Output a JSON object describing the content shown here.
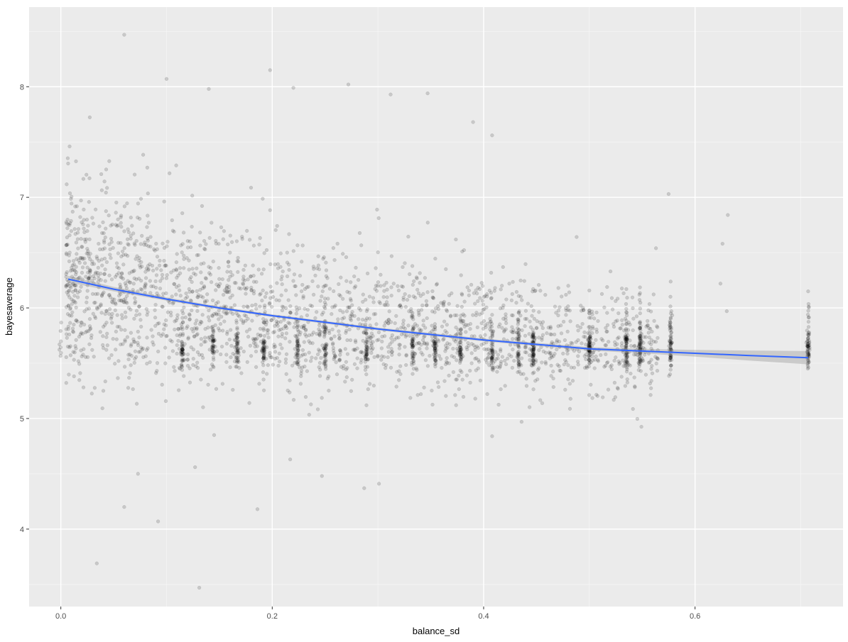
{
  "chart_data": {
    "type": "scatter",
    "title": "",
    "xlabel": "balance_sd",
    "ylabel": "bayesaverage",
    "xlim": [
      -0.03,
      0.74
    ],
    "ylim": [
      3.3,
      8.72
    ],
    "x_ticks": [
      0.0,
      0.2,
      0.4,
      0.6
    ],
    "x_tick_labels": [
      "0.0",
      "0.2",
      "0.4",
      "0.6"
    ],
    "y_ticks": [
      4,
      5,
      6,
      7,
      8
    ],
    "y_tick_labels": [
      "4",
      "5",
      "6",
      "7",
      "8"
    ],
    "grid": true,
    "legend": "none",
    "colors": {
      "panel_background": "#EBEBEB",
      "grid_major": "#FFFFFF",
      "grid_minor": "#F5F5F5",
      "point": "#000000",
      "smooth_line": "#3366FF",
      "confidence_band": "#999999"
    },
    "point_alpha": 0.15,
    "discrete_x_columns": [
      0.0,
      0.115,
      0.144,
      0.167,
      0.192,
      0.224,
      0.25,
      0.289,
      0.333,
      0.354,
      0.378,
      0.408,
      0.433,
      0.447,
      0.5,
      0.535,
      0.548,
      0.577,
      0.707
    ],
    "outlier_points": [
      {
        "x": 0.06,
        "y": 8.47
      },
      {
        "x": 0.198,
        "y": 8.15
      },
      {
        "x": 0.14,
        "y": 7.98
      },
      {
        "x": 0.22,
        "y": 7.99
      },
      {
        "x": 0.272,
        "y": 8.02
      },
      {
        "x": 0.312,
        "y": 7.93
      },
      {
        "x": 0.034,
        "y": 3.69
      },
      {
        "x": 0.131,
        "y": 3.47
      },
      {
        "x": 0.092,
        "y": 4.07
      },
      {
        "x": 0.06,
        "y": 4.2
      },
      {
        "x": 0.186,
        "y": 4.18
      },
      {
        "x": 0.287,
        "y": 4.37
      },
      {
        "x": 0.301,
        "y": 4.41
      },
      {
        "x": 0.247,
        "y": 4.48
      },
      {
        "x": 0.217,
        "y": 4.63
      },
      {
        "x": 0.127,
        "y": 4.56
      },
      {
        "x": 0.073,
        "y": 4.5
      },
      {
        "x": 0.408,
        "y": 4.84
      },
      {
        "x": 0.145,
        "y": 4.85
      },
      {
        "x": 0.563,
        "y": 6.54
      },
      {
        "x": 0.575,
        "y": 7.03
      },
      {
        "x": 0.626,
        "y": 6.58
      },
      {
        "x": 0.631,
        "y": 6.84
      },
      {
        "x": 0.63,
        "y": 5.97
      },
      {
        "x": 0.624,
        "y": 6.22
      },
      {
        "x": 0.52,
        "y": 6.33
      },
      {
        "x": 0.707,
        "y": 6.15
      },
      {
        "x": 0.408,
        "y": 7.56
      },
      {
        "x": 0.39,
        "y": 7.68
      },
      {
        "x": 0.347,
        "y": 7.94
      },
      {
        "x": 0.1,
        "y": 8.07
      }
    ],
    "smooth": {
      "method": "loess",
      "x": [
        0.007,
        0.05,
        0.1,
        0.15,
        0.2,
        0.25,
        0.3,
        0.35,
        0.4,
        0.45,
        0.5,
        0.55,
        0.6,
        0.65,
        0.707
      ],
      "y": [
        6.26,
        6.17,
        6.08,
        6.0,
        5.93,
        5.87,
        5.81,
        5.76,
        5.71,
        5.67,
        5.63,
        5.61,
        5.59,
        5.57,
        5.55
      ],
      "band_halfwidth": [
        0.03,
        0.02,
        0.015,
        0.012,
        0.012,
        0.012,
        0.012,
        0.013,
        0.013,
        0.015,
        0.016,
        0.02,
        0.03,
        0.045,
        0.06
      ]
    }
  }
}
